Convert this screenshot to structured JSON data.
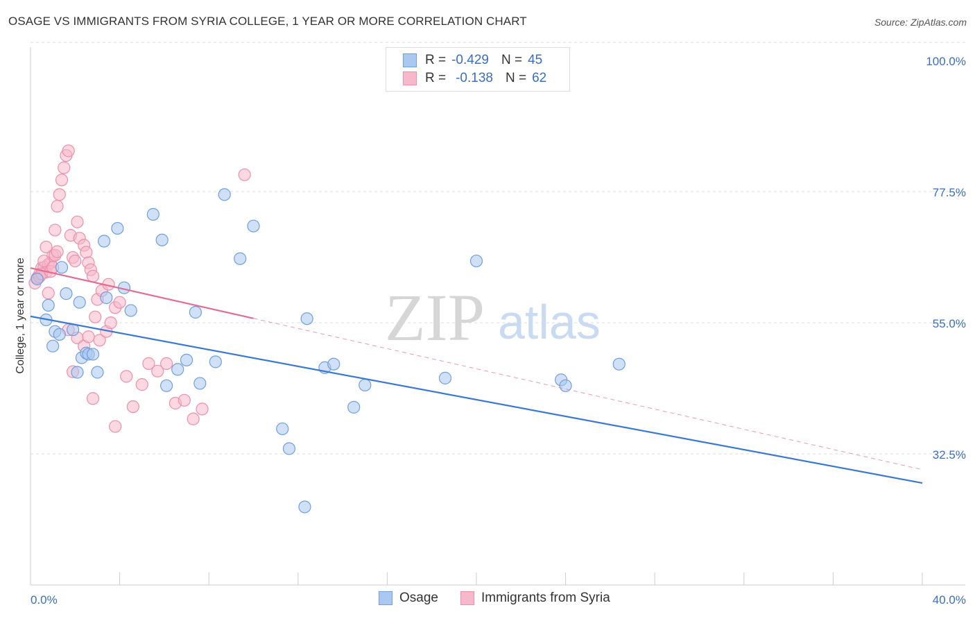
{
  "header": {
    "title": "OSAGE VS IMMIGRANTS FROM SYRIA COLLEGE, 1 YEAR OR MORE CORRELATION CHART",
    "source": "Source: ZipAtlas.com"
  },
  "legend": {
    "rows": [
      {
        "r_label": "R =",
        "r_value": "-0.429",
        "n_label": "N =",
        "n_value": "45"
      },
      {
        "r_label": "R =",
        "r_value": "-0.138",
        "n_label": "N =",
        "n_value": "62"
      }
    ]
  },
  "watermark": {
    "part1": "ZIP",
    "part2": "atlas"
  },
  "colors": {
    "osage_fill": "#aac8f0",
    "osage_stroke": "#6f9fdc",
    "osage_line": "#3a78d2",
    "syria_fill": "#f7b8cb",
    "syria_stroke": "#ec8fab",
    "syria_line": "#e26c93",
    "value_text": "#3a6ec0",
    "grid": "#dddddd"
  },
  "chart_data": {
    "type": "scatter",
    "title": "OSAGE VS IMMIGRANTS FROM SYRIA COLLEGE, 1 YEAR OR MORE CORRELATION CHART",
    "xlabel": "",
    "ylabel": "College, 1 year or more",
    "xlim": [
      0,
      40
    ],
    "ylim": [
      10,
      103
    ],
    "x_tick_labels": [
      {
        "value": 0,
        "label": "0.0%"
      },
      {
        "value": 40,
        "label": "40.0%"
      }
    ],
    "y_ticks": [
      {
        "value": 32.5,
        "label": "32.5%"
      },
      {
        "value": 55.0,
        "label": "55.0%"
      },
      {
        "value": 77.5,
        "label": "77.5%"
      },
      {
        "value": 100.0,
        "label": "100.0%"
      }
    ],
    "grid": true,
    "series": [
      {
        "name": "Osage",
        "r": -0.429,
        "n": 45,
        "trend": {
          "x0": 0,
          "y0": 56.1,
          "x1": 40,
          "y1": 27.5,
          "solid_to": 40
        },
        "points": [
          [
            0.3,
            62.5
          ],
          [
            0.7,
            55.5
          ],
          [
            0.8,
            58.0
          ],
          [
            1.0,
            51.0
          ],
          [
            1.1,
            53.5
          ],
          [
            1.3,
            53.0
          ],
          [
            1.6,
            60.0
          ],
          [
            1.4,
            64.5
          ],
          [
            1.9,
            53.8
          ],
          [
            2.1,
            46.5
          ],
          [
            2.2,
            58.5
          ],
          [
            2.3,
            49.0
          ],
          [
            2.5,
            49.8
          ],
          [
            2.6,
            49.6
          ],
          [
            2.8,
            49.6
          ],
          [
            3.0,
            46.5
          ],
          [
            3.3,
            69.0
          ],
          [
            3.4,
            59.3
          ],
          [
            3.9,
            71.2
          ],
          [
            4.2,
            61.0
          ],
          [
            4.5,
            57.1
          ],
          [
            5.5,
            73.6
          ],
          [
            5.9,
            69.2
          ],
          [
            6.1,
            44.2
          ],
          [
            6.6,
            47.0
          ],
          [
            7.0,
            48.6
          ],
          [
            7.4,
            56.8
          ],
          [
            7.6,
            44.6
          ],
          [
            8.3,
            48.3
          ],
          [
            8.7,
            77.0
          ],
          [
            9.4,
            66.0
          ],
          [
            10.0,
            71.6
          ],
          [
            11.3,
            36.8
          ],
          [
            11.6,
            33.4
          ],
          [
            12.3,
            23.4
          ],
          [
            12.4,
            55.7
          ],
          [
            13.2,
            47.3
          ],
          [
            13.6,
            47.9
          ],
          [
            14.5,
            40.5
          ],
          [
            15.0,
            44.3
          ],
          [
            18.6,
            45.5
          ],
          [
            20.0,
            65.6
          ],
          [
            23.8,
            45.2
          ],
          [
            24.0,
            44.2
          ],
          [
            26.4,
            47.9
          ]
        ]
      },
      {
        "name": "Immigrants from Syria",
        "r": -0.138,
        "n": 62,
        "trend": {
          "x0": 0,
          "y0": 64.4,
          "x1": 40,
          "y1": 29.8,
          "solid_to": 10.0
        },
        "points": [
          [
            0.2,
            61.8
          ],
          [
            0.3,
            62.7
          ],
          [
            0.4,
            63.3
          ],
          [
            0.5,
            64.4
          ],
          [
            0.6,
            64.5
          ],
          [
            0.7,
            63.7
          ],
          [
            0.8,
            65.0
          ],
          [
            0.9,
            65.3
          ],
          [
            1.0,
            66.5
          ],
          [
            1.1,
            66.6
          ],
          [
            1.2,
            67.2
          ],
          [
            0.4,
            62.9
          ],
          [
            0.5,
            63.4
          ],
          [
            0.6,
            65.6
          ],
          [
            0.7,
            68.0
          ],
          [
            0.8,
            60.1
          ],
          [
            0.9,
            63.8
          ],
          [
            1.0,
            64.5
          ],
          [
            1.1,
            70.9
          ],
          [
            1.2,
            75.0
          ],
          [
            1.3,
            77.0
          ],
          [
            1.4,
            79.5
          ],
          [
            1.5,
            81.6
          ],
          [
            1.6,
            83.7
          ],
          [
            1.7,
            84.5
          ],
          [
            1.8,
            70.0
          ],
          [
            1.9,
            66.2
          ],
          [
            2.0,
            65.6
          ],
          [
            2.1,
            72.3
          ],
          [
            2.2,
            69.5
          ],
          [
            2.4,
            68.3
          ],
          [
            2.5,
            67.1
          ],
          [
            2.6,
            65.3
          ],
          [
            2.7,
            64.1
          ],
          [
            2.8,
            63.0
          ],
          [
            3.0,
            59.0
          ],
          [
            3.2,
            60.5
          ],
          [
            3.5,
            61.6
          ],
          [
            3.8,
            57.6
          ],
          [
            4.0,
            58.5
          ],
          [
            4.3,
            45.8
          ],
          [
            4.6,
            40.6
          ],
          [
            5.0,
            44.4
          ],
          [
            5.3,
            48.0
          ],
          [
            5.7,
            46.7
          ],
          [
            6.1,
            48.0
          ],
          [
            6.5,
            41.2
          ],
          [
            6.9,
            41.7
          ],
          [
            7.3,
            38.5
          ],
          [
            7.7,
            40.2
          ],
          [
            1.7,
            53.8
          ],
          [
            2.1,
            52.4
          ],
          [
            2.4,
            51.0
          ],
          [
            2.6,
            52.6
          ],
          [
            2.9,
            56.0
          ],
          [
            3.1,
            52.0
          ],
          [
            3.4,
            53.5
          ],
          [
            3.6,
            55.0
          ],
          [
            1.9,
            46.6
          ],
          [
            2.8,
            42.0
          ],
          [
            3.8,
            37.2
          ],
          [
            9.6,
            80.4
          ]
        ]
      }
    ]
  },
  "bottom_legend": [
    {
      "label": "Osage"
    },
    {
      "label": "Immigrants from Syria"
    }
  ]
}
